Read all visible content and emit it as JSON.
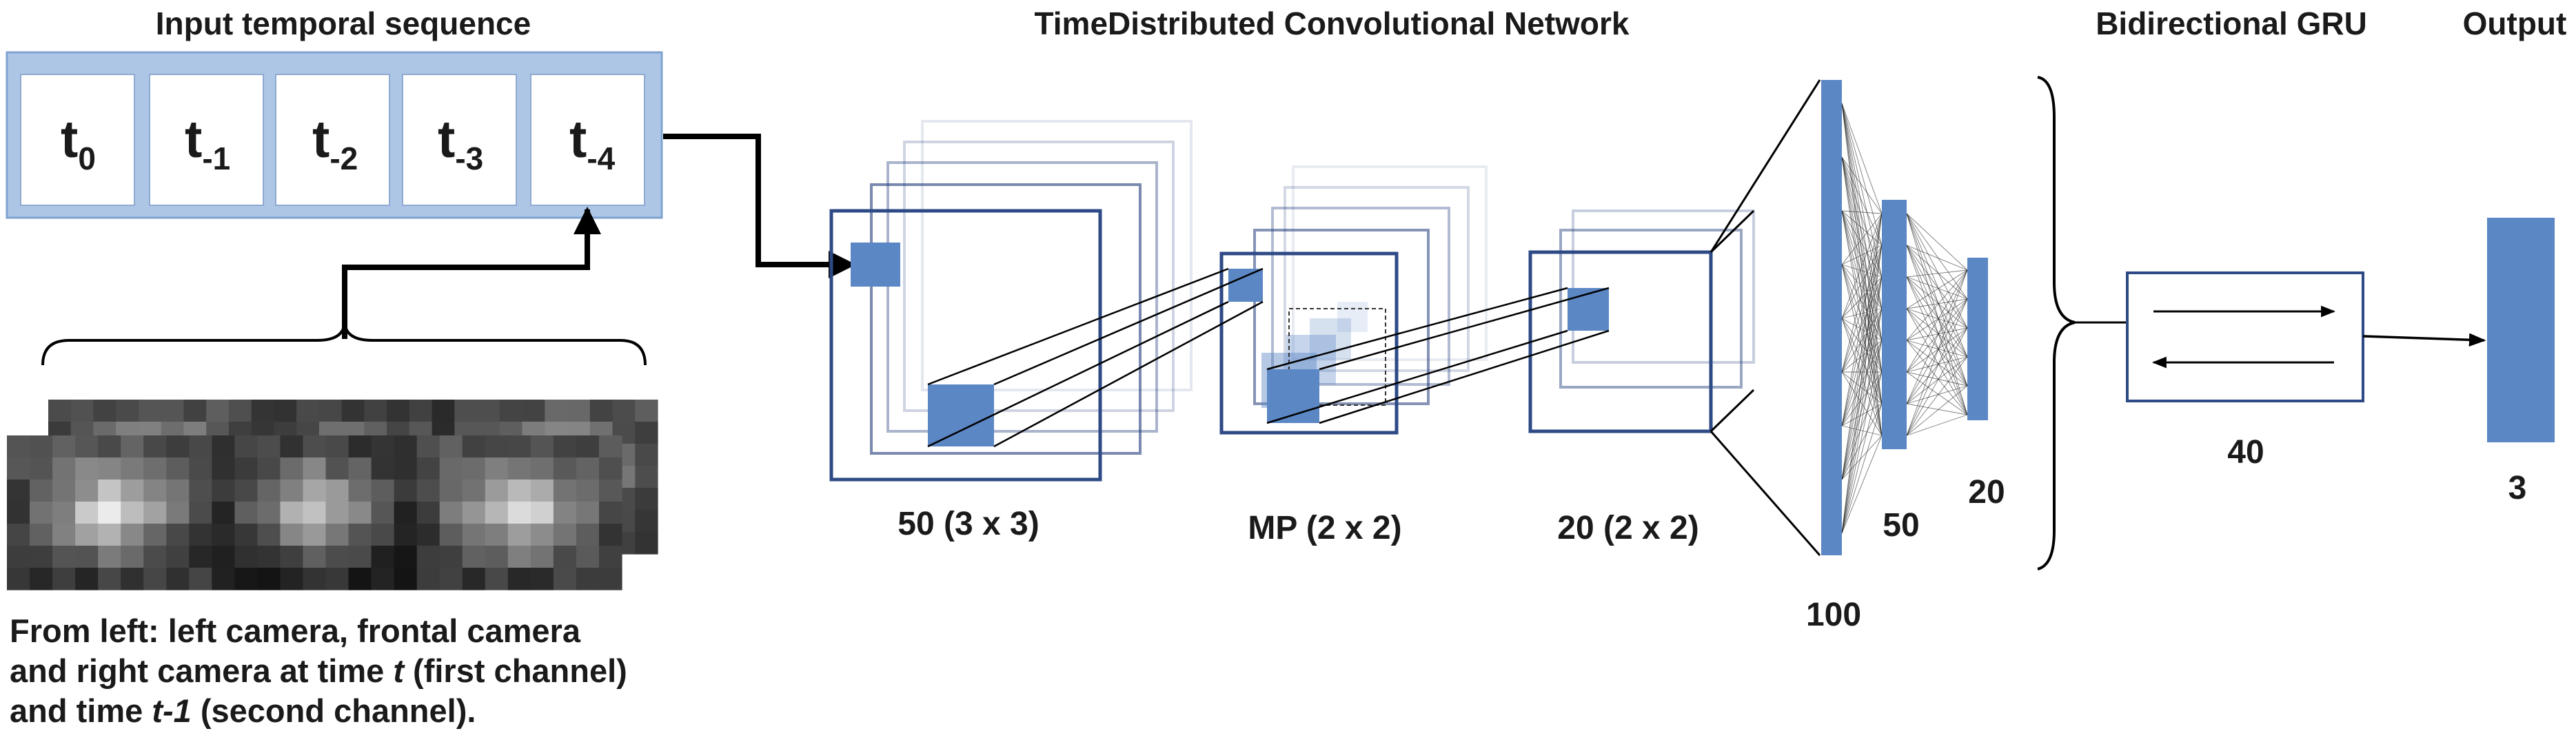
{
  "titles": {
    "input": "Input temporal sequence",
    "cnn": "TimeDistributed Convolutional Network",
    "gru": "Bidirectional GRU",
    "output": "Output"
  },
  "timesteps": [
    {
      "base": "t",
      "sub": "0"
    },
    {
      "base": "t",
      "sub": "-1"
    },
    {
      "base": "t",
      "sub": "-2"
    },
    {
      "base": "t",
      "sub": "-3"
    },
    {
      "base": "t",
      "sub": "-4"
    }
  ],
  "layers": {
    "conv1": "50 (3 x 3)",
    "pool": "MP (2 x 2)",
    "conv2": "20 (2 x 2)",
    "dense1": "100",
    "dense2": "50",
    "dense3": "20",
    "gru": "40",
    "output": "3"
  },
  "caption": {
    "line1": "From left: left camera, frontal camera",
    "line2_a": "and right camera at time ",
    "line2_t": "t",
    "line2_b": " (first channel)",
    "line3_a": "and time ",
    "line3_t": "t-1",
    "line3_b": " (second channel)."
  },
  "colors": {
    "accent": "#5b87c5",
    "frame": "#2e4a86",
    "input_bg": "#aec6e6"
  }
}
